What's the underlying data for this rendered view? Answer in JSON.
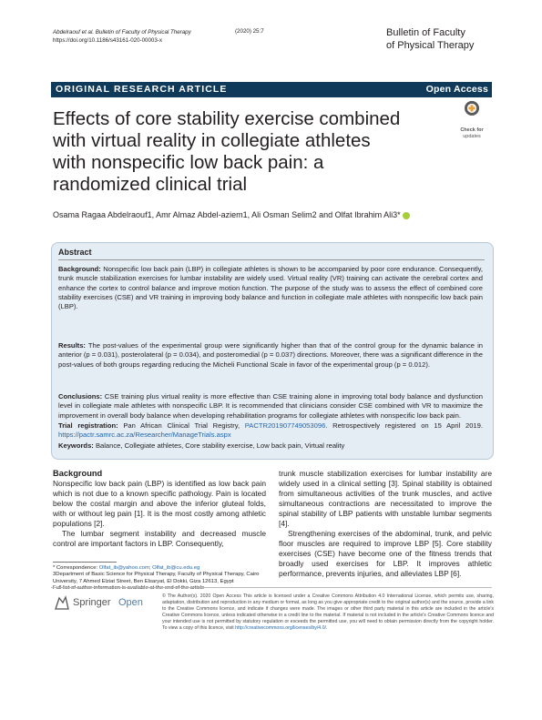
{
  "header": {
    "citation": "Abdelraouf et al. Bulletin of Faculty of Physical Therapy",
    "volume": "(2020) 25:7",
    "doi": "https://doi.org/10.1186/s43161-020-00003-x",
    "journal_line1": "Bulletin of Faculty",
    "journal_line2": "of Physical Therapy"
  },
  "banner": {
    "article_type": "ORIGINAL RESEARCH ARTICLE",
    "access": "Open Access",
    "color": "#0f3a5a"
  },
  "title": {
    "line1": "Effects of core stability exercise combined",
    "line2": "with virtual reality in collegiate athletes",
    "line3": "with nonspecific low back pain: a",
    "line4": "randomized clinical trial"
  },
  "check_updates": {
    "line1": "Check for",
    "line2": "updates",
    "icon": "crossmark-icon"
  },
  "authors": "Osama Ragaa Abdelraouf1, Amr Almaz Abdel-aziem1, Ali Osman Selim2 and Olfat Ibrahim Ali3*",
  "abstract": {
    "heading": "Abstract",
    "background_label": "Background:",
    "background_text": "Nonspecific low back pain (LBP) in collegiate athletes is shown to be accompanied by poor core endurance. Consequently, trunk muscle stabilization exercises for lumbar instability are widely used. Virtual reality (VR) training can activate the cerebral cortex and enhance the cortex to control balance and improve motion function. The purpose of the study was to assess the effect of combined core stability exercises (CSE) and VR training in improving body balance and function in collegiate male athletes with nonspecific low back pain (LBP).",
    "results_label": "Results:",
    "results_text": "The post-values of the experimental group were significantly higher than that of the control group for the dynamic balance in anterior (p = 0.031), posterolateral (p = 0.034), and posteromedial (p = 0.037) directions. Moreover, there was a significant difference in the post-values of both groups regarding reducing the Micheli Functional Scale in favor of the experimental group (p = 0.012).",
    "conclusions_label": "Conclusions:",
    "conclusions_text": "CSE training plus virtual reality is more effective than CSE training alone in improving total body balance and dysfunction level in collegiate male athletes with nonspecific LBP. It is recommended that clinicians consider CSE combined with VR to maximize the improvement in overall body balance when developing rehabilitation programs for collegiate athletes with nonspecific low back pain.",
    "trial_label": "Trial registration:",
    "trial_text_a": "Pan African Clinical Trial Registry,",
    "trial_link_a": "PACTR201907749053096",
    "trial_text_b": ". Retrospectively registered on 15 April 2019.",
    "trial_link_b": "https://pactr.samrc.ac.za/Researcher/ManageTrials.aspx",
    "keywords_label": "Keywords:",
    "keywords_text": "Balance, Collegiate athletes, Core stability exercise, Low back pain, Virtual reality"
  },
  "body": {
    "background_heading": "Background",
    "left_p1": "Nonspecific low back pain (LBP) is identified as low back pain which is not due to a known specific pathology. Pain is located below the costal margin and above the inferior gluteal folds, with or without leg pain [1]. It is the most costly among athletic populations [2].",
    "left_p2": "The lumbar segment instability and decreased muscle control are important factors in LBP. Consequently,",
    "right_p1": "trunk muscle stabilization exercises for lumbar instability are widely used in a clinical setting [3]. Spinal stability is obtained from simultaneous activities of the trunk muscles, and active simultaneous contractions are necessitated to improve the spinal stability of LBP patients with unstable lumbar segments [4].",
    "right_p2": "Strengthening exercises of the abdominal, trunk, and pelvic floor muscles are required to improve LBP [5]. Core stability exercises (CSE) have become one of the fitness trends that broadly used exercises for LBP. It improves athletic performance, prevents injuries, and alleviates LBP [6]."
  },
  "footnote": {
    "correspondence_label": "* Correspondence:",
    "correspondence_emails": "Olfat_ib@yahoo.com; Olfat_ib@cu.edu.eg",
    "affiliation": "3Department of Basic Science for Physical Therapy, Faculty of Physical Therapy, Cairo University, 7 Ahmed Elziat Street, Ben Elsaryat, El Dokki, Giza 12613, Egypt",
    "full_list": "Full list of author information is available at the end of the article"
  },
  "publisher": {
    "name": "Springer",
    "open": "Open",
    "license_a": "© The Author(s). 2020 Open Access This article is licensed under a Creative Commons Attribution 4.0 International License, which permits use, sharing, adaptation, distribution and reproduction in any medium or format, as long as you give appropriate credit to the original author(s) and the source, provide a link to the Creative Commons licence, and indicate if changes were made. The images or other third party material in this article are included in the article's Creative Commons licence, unless indicated otherwise in a credit line to the material. If material is not included in the article's Creative Commons licence and your intended use is not permitted by statutory regulation or exceeds the permitted use, you will need to obtain permission directly from the copyright holder. To view a copy of this licence, visit",
    "license_link": "http://creativecommons.org/licenses/by/4.0/",
    "license_b": "."
  }
}
